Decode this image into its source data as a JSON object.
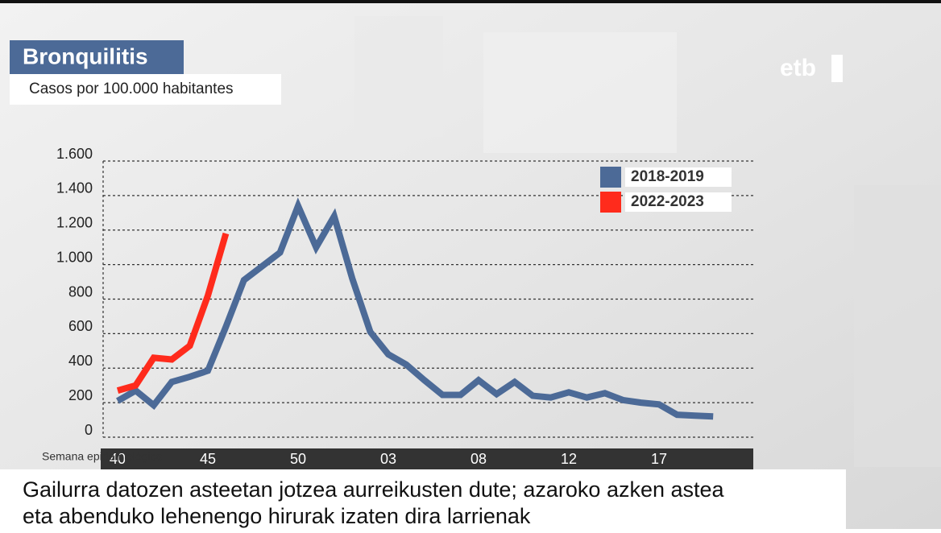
{
  "chart_data": {
    "type": "line",
    "title": "Bronquilitis",
    "subtitle": "Casos por 100.000 habitantes",
    "logo": "etb",
    "x_label": "Semana epidemiológica",
    "caption": [
      "Gailurra datozen asteetan jotzea aurreikusten dute; azaroko azken astea",
      "eta abenduko lehenengo hirurak izaten dira larrienak"
    ],
    "categories": [
      "40",
      null,
      null,
      null,
      null,
      "45",
      null,
      null,
      null,
      null,
      "50",
      null,
      null,
      null,
      null,
      "03",
      null,
      null,
      null,
      null,
      "08",
      null,
      null,
      null,
      null,
      "12",
      null,
      null,
      null,
      null,
      "17",
      null,
      null,
      null
    ],
    "series": [
      {
        "name": "2018-2019",
        "color": "#4c6a97",
        "values": [
          210,
          270,
          185,
          320,
          350,
          385,
          640,
          910,
          990,
          1070,
          1340,
          1100,
          1280,
          920,
          610,
          480,
          420,
          330,
          245,
          245,
          330,
          250,
          320,
          240,
          230,
          260,
          230,
          255,
          215,
          200,
          190,
          130,
          125,
          120
        ]
      },
      {
        "name": "2022-2023",
        "color": "#ff2b1c",
        "values": [
          270,
          300,
          460,
          450,
          530,
          820,
          1180,
          null,
          null,
          null,
          null,
          null,
          null,
          null,
          null,
          null,
          null,
          null,
          null,
          null,
          null,
          null,
          null,
          null,
          null,
          null,
          null,
          null,
          null,
          null,
          null,
          null,
          null,
          null
        ]
      }
    ],
    "ylim": [
      0,
      1600
    ],
    "yticks": [
      0,
      200,
      400,
      600,
      800,
      {
        "value": 1000,
        "label": "1.000"
      },
      {
        "value": 1200,
        "label": "1.200"
      },
      {
        "value": 1400,
        "label": "1.400"
      },
      {
        "value": 1600,
        "label": "1.600"
      }
    ],
    "grid": true
  }
}
